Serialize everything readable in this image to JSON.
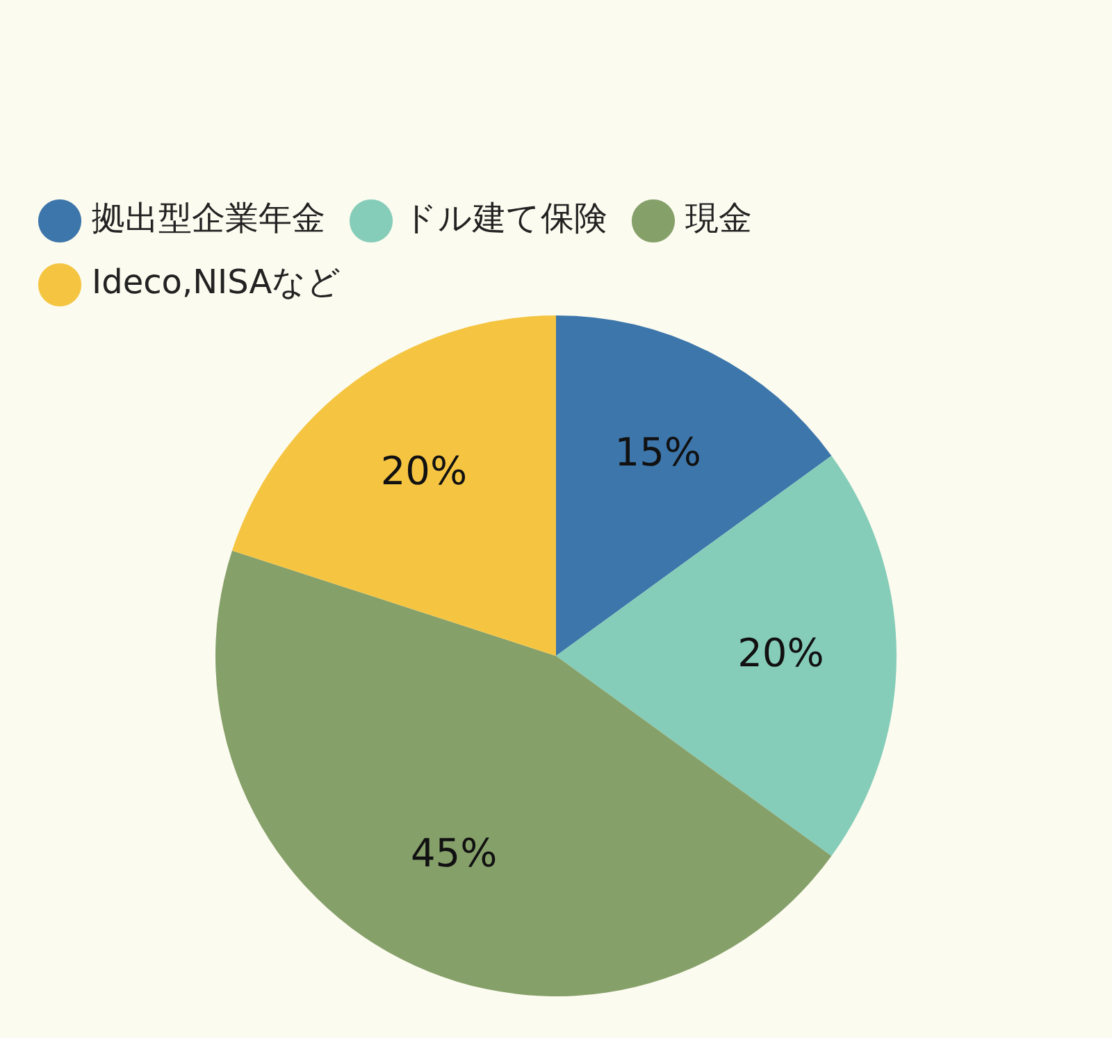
{
  "chart_data": {
    "type": "pie",
    "categories": [
      "拠出型企業年金",
      "ドル建て保険",
      "現金",
      "Ideco,NISAなど"
    ],
    "values": [
      15,
      20,
      45,
      20
    ],
    "colors": [
      "#3d76ab",
      "#86cdb9",
      "#86a06a",
      "#f5c542"
    ],
    "value_labels": [
      "15%",
      "20%",
      "45%",
      "20%"
    ],
    "legend": "top left"
  }
}
